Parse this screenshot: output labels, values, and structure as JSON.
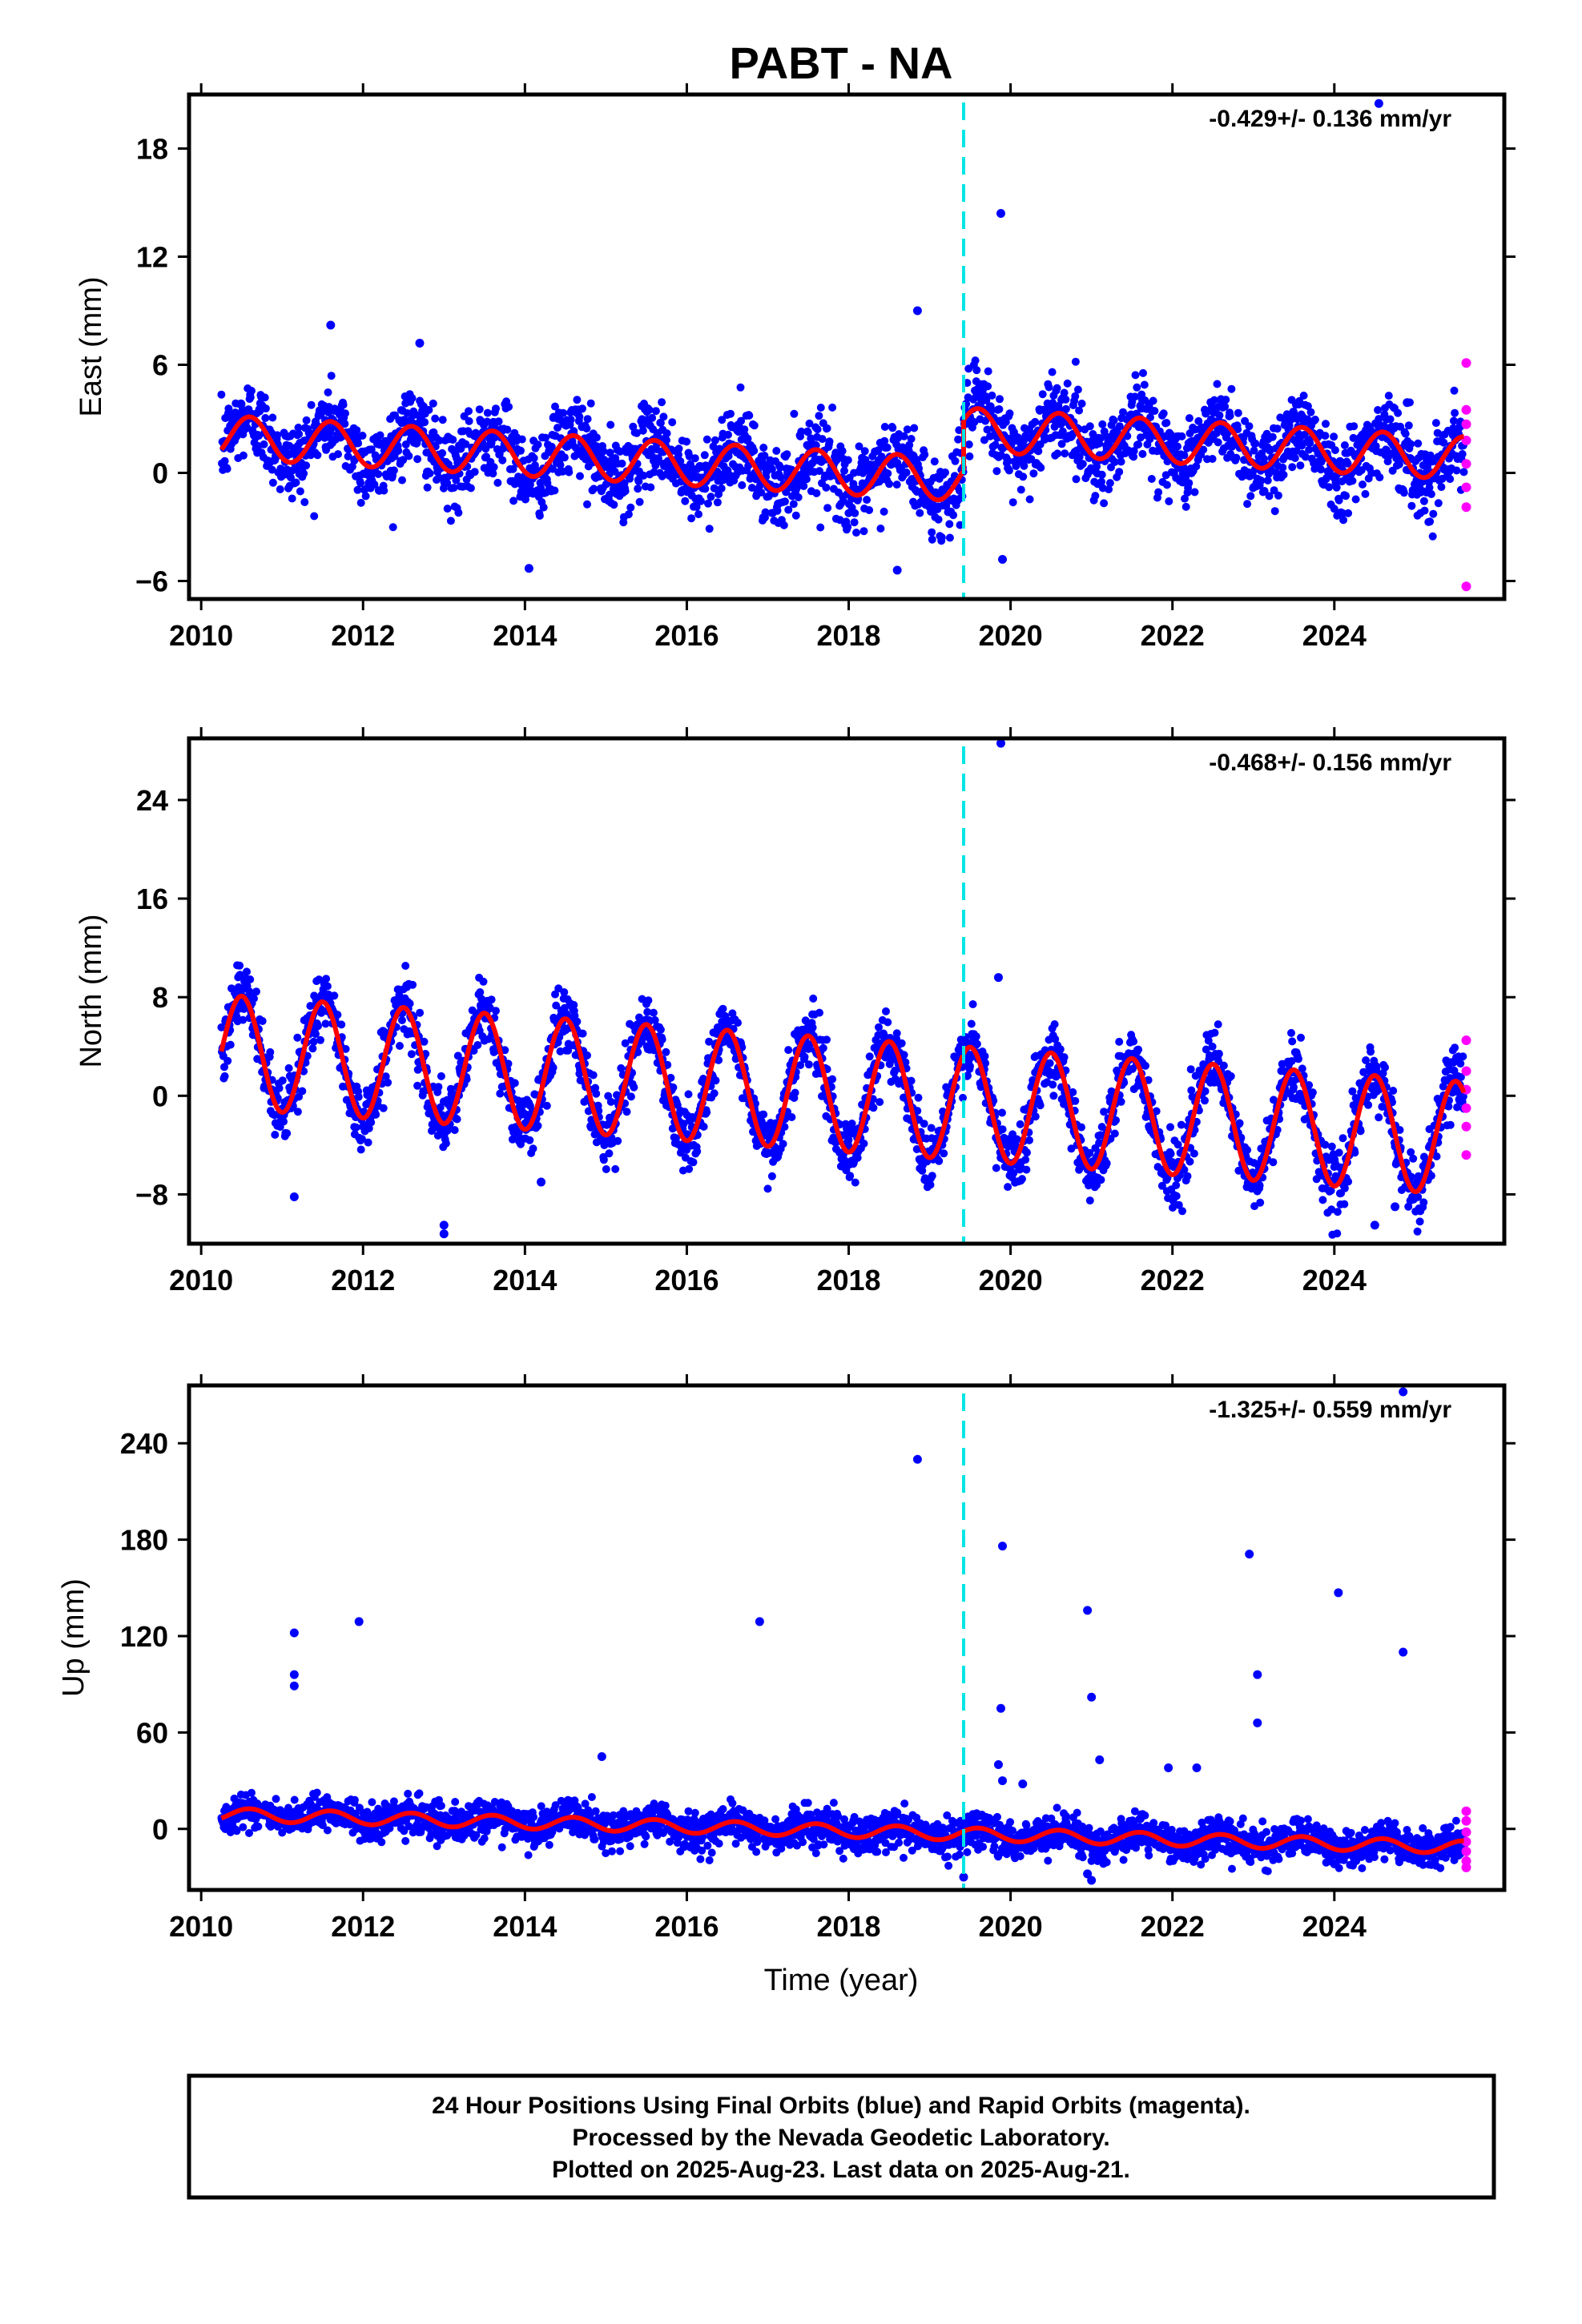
{
  "title": "PABT - NA",
  "xlabel": "Time (year)",
  "footer": {
    "line1": "24 Hour Positions Using Final Orbits (blue) and Rapid Orbits (magenta).",
    "line2": "Processed by the Nevada Geodetic Laboratory.",
    "line3": "Plotted on 2025-Aug-23. Last data on 2025-Aug-21."
  },
  "colors": {
    "final": "#0000ff",
    "rapid": "#ff00ff",
    "model": "#ff0000",
    "event": "#00e5e5"
  },
  "chart_data": [
    {
      "type": "scatter",
      "component": "east",
      "ylabel": "East (mm)",
      "rate_label": "-0.429+/- 0.136 mm/yr",
      "xlim": [
        2009.85,
        2026.1
      ],
      "ylim": [
        -7,
        21
      ],
      "xticks": [
        2010,
        2012,
        2014,
        2016,
        2018,
        2020,
        2022,
        2024
      ],
      "yticks": [
        -6,
        0,
        6,
        12,
        18
      ],
      "event_x": 2019.42,
      "data_start": 2010.25,
      "data_end": 2025.6,
      "model": {
        "offset": 2.0,
        "trend": -0.26,
        "amp": 1.2,
        "phase_peak": 0.6,
        "step_at": 2019.42,
        "step": 2.8
      },
      "scatter_sd": 1.1,
      "outliers": [
        [
          2018.85,
          9.0
        ],
        [
          2019.88,
          14.4
        ],
        [
          2024.55,
          20.5
        ],
        [
          2011.6,
          8.2
        ],
        [
          2012.7,
          7.2
        ],
        [
          2014.05,
          -5.3
        ],
        [
          2018.6,
          -5.4
        ],
        [
          2019.9,
          -4.8
        ],
        [
          2024.9,
          3.9
        ]
      ],
      "rapid": [
        [
          2025.63,
          6.1
        ],
        [
          2025.63,
          3.5
        ],
        [
          2025.63,
          2.7
        ],
        [
          2025.63,
          1.8
        ],
        [
          2025.63,
          0.5
        ],
        [
          2025.63,
          -0.8
        ],
        [
          2025.63,
          -1.9
        ],
        [
          2025.63,
          -6.3
        ]
      ]
    },
    {
      "type": "scatter",
      "component": "north",
      "ylabel": "North (mm)",
      "rate_label": "-0.468+/- 0.156 mm/yr",
      "xlim": [
        2009.85,
        2026.1
      ],
      "ylim": [
        -12,
        29
      ],
      "xticks": [
        2010,
        2012,
        2014,
        2016,
        2018,
        2020,
        2022,
        2024
      ],
      "yticks": [
        -8,
        0,
        8,
        16,
        24
      ],
      "event_x": 2019.42,
      "data_start": 2010.25,
      "data_end": 2025.6,
      "model": {
        "offset": 3.6,
        "trend": -0.46,
        "amp": 4.6,
        "phase_peak": 0.5,
        "step_at": 2019.42,
        "step": 0
      },
      "scatter_sd": 1.3,
      "outliers": [
        [
          2019.88,
          28.6
        ],
        [
          2019.85,
          9.6
        ],
        [
          2011.15,
          -8.2
        ],
        [
          2013.0,
          -10.5
        ],
        [
          2013.0,
          -11.2
        ],
        [
          2014.2,
          -7.0
        ],
        [
          2024.5,
          -10.5
        ],
        [
          2024.75,
          -9.0
        ]
      ],
      "rapid": [
        [
          2025.63,
          4.5
        ],
        [
          2025.63,
          2.0
        ],
        [
          2025.63,
          0.5
        ],
        [
          2025.63,
          -1.0
        ],
        [
          2025.63,
          -2.5
        ],
        [
          2025.63,
          -4.8
        ]
      ]
    },
    {
      "type": "scatter",
      "component": "up",
      "ylabel": "Up (mm)",
      "rate_label": "-1.325+/- 0.559 mm/yr",
      "xlim": [
        2009.85,
        2026.1
      ],
      "ylim": [
        -38,
        276
      ],
      "xticks": [
        2010,
        2012,
        2014,
        2016,
        2018,
        2020,
        2022,
        2024
      ],
      "yticks": [
        0,
        60,
        120,
        180,
        240
      ],
      "event_x": 2019.42,
      "data_start": 2010.25,
      "data_end": 2025.6,
      "model": {
        "offset": 9.0,
        "trend": -1.33,
        "amp": 4.0,
        "phase_peak": 0.6,
        "step_at": 2019.42,
        "step": 0
      },
      "scatter_sd": 5.5,
      "outliers": [
        [
          2011.15,
          122
        ],
        [
          2011.15,
          96
        ],
        [
          2011.15,
          89
        ],
        [
          2011.95,
          129
        ],
        [
          2014.95,
          45
        ],
        [
          2016.9,
          129
        ],
        [
          2018.85,
          230
        ],
        [
          2019.9,
          176
        ],
        [
          2019.88,
          75
        ],
        [
          2019.85,
          40
        ],
        [
          2019.9,
          30
        ],
        [
          2020.15,
          28
        ],
        [
          2020.95,
          136
        ],
        [
          2021.0,
          82
        ],
        [
          2021.1,
          43
        ],
        [
          2021.95,
          38
        ],
        [
          2022.3,
          38
        ],
        [
          2022.95,
          171
        ],
        [
          2023.05,
          96
        ],
        [
          2023.05,
          66
        ],
        [
          2024.05,
          147
        ],
        [
          2024.85,
          110
        ],
        [
          2024.85,
          272
        ],
        [
          2019.42,
          -30
        ],
        [
          2020.95,
          -28
        ],
        [
          2021.0,
          -32
        ]
      ],
      "rapid": [
        [
          2025.63,
          11
        ],
        [
          2025.63,
          5
        ],
        [
          2025.63,
          -2
        ],
        [
          2025.63,
          -8
        ],
        [
          2025.63,
          -14
        ],
        [
          2025.63,
          -20
        ],
        [
          2025.63,
          -24
        ]
      ]
    }
  ]
}
